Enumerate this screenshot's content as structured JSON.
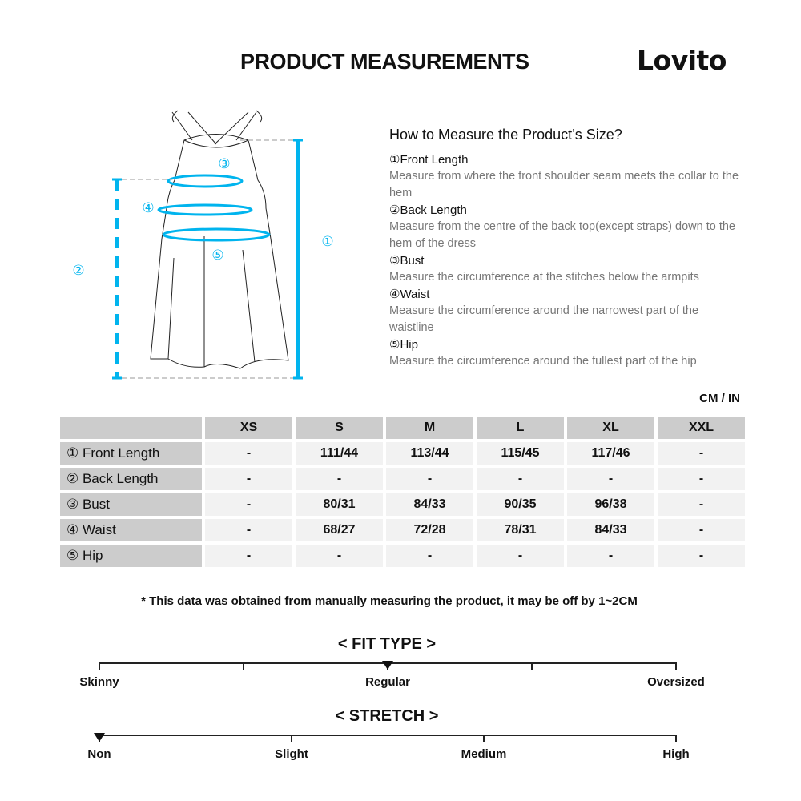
{
  "header": {
    "title": "PRODUCT MEASUREMENTS",
    "logo": "Lovito"
  },
  "diagram": {
    "markers": [
      "①",
      "②",
      "③",
      "④",
      "⑤"
    ],
    "accent": "#00b4ee"
  },
  "howto": {
    "title": "How to Measure the Product’s Size?",
    "items": [
      {
        "name": "①Front Length",
        "desc": "Measure from where the front shoulder seam meets the collar to the hem"
      },
      {
        "name": "②Back Length",
        "desc": "Measure from the centre of the back top(except straps) down to the hem of the dress"
      },
      {
        "name": "③Bust",
        "desc": "Measure the circumference at the stitches below the armpits"
      },
      {
        "name": "④Waist",
        "desc": "Measure the circumference around the narrowest part of the waistline"
      },
      {
        "name": "⑤Hip",
        "desc": "Measure the circumference around the fullest part of the hip"
      }
    ]
  },
  "unit": "CM / IN",
  "table": {
    "sizes": [
      "XS",
      "S",
      "M",
      "L",
      "XL",
      "XXL"
    ],
    "rows": [
      {
        "label": "① Front Length",
        "values": [
          "-",
          "111/44",
          "113/44",
          "115/45",
          "117/46",
          "-"
        ]
      },
      {
        "label": "② Back Length",
        "values": [
          "-",
          "-",
          "-",
          "-",
          "-",
          "-"
        ]
      },
      {
        "label": "③ Bust",
        "values": [
          "-",
          "80/31",
          "84/33",
          "90/35",
          "96/38",
          "-"
        ]
      },
      {
        "label": "④ Waist",
        "values": [
          "-",
          "68/27",
          "72/28",
          "78/31",
          "84/33",
          "-"
        ]
      },
      {
        "label": "⑤ Hip",
        "values": [
          "-",
          "-",
          "-",
          "-",
          "-",
          "-"
        ]
      }
    ]
  },
  "note": "* This data was obtained from manually measuring the product, it may be off by 1~2CM",
  "fit": {
    "title": "< FIT TYPE >",
    "labels": [
      "Skinny",
      "Regular",
      "Oversized"
    ],
    "selected": "Regular",
    "level": 0.5
  },
  "stretch": {
    "title": "< STRETCH >",
    "labels": [
      "Non",
      "Slight",
      "Medium",
      "High"
    ],
    "selected": "Non",
    "level": 0
  }
}
